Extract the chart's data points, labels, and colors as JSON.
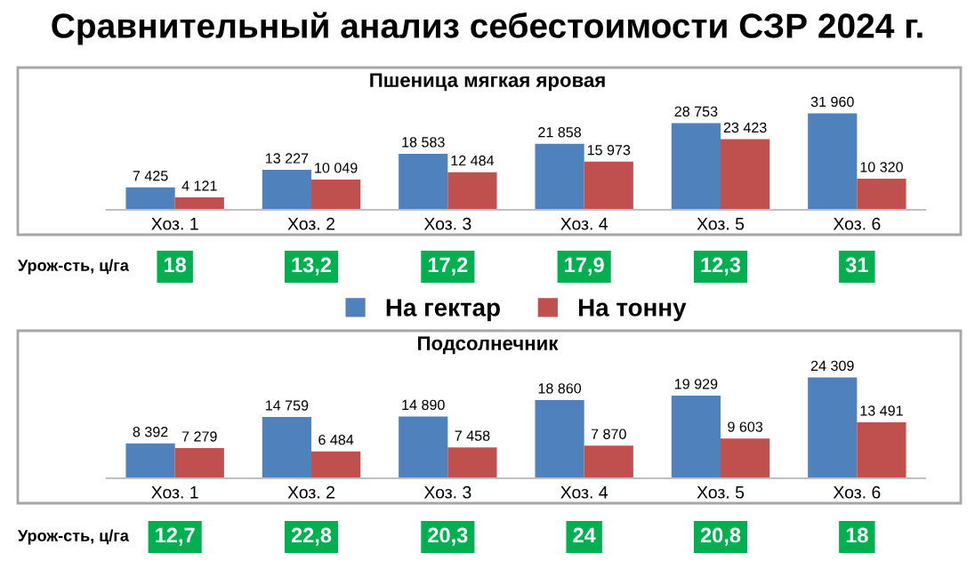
{
  "chart_data": [
    {
      "type": "bar",
      "title": "Сравнительный анализ себестоимости СЗР 2024 г.",
      "subtitle": "Пшеница мягкая яровая",
      "categories": [
        "Хоз. 1",
        "Хоз. 2",
        "Хоз. 3",
        "Хоз. 4",
        "Хоз. 5",
        "Хоз. 6"
      ],
      "series": [
        {
          "name": "На гектар",
          "color": "#4f81bd",
          "values": [
            7425,
            13227,
            18583,
            21858,
            28753,
            31960
          ],
          "value_labels": [
            "7 425",
            "13 227",
            "18 583",
            "21 858",
            "28 753",
            "31 960"
          ]
        },
        {
          "name": "На тонну",
          "color": "#c0504d",
          "values": [
            4121,
            10049,
            12484,
            15973,
            23423,
            10320
          ],
          "value_labels": [
            "4 121",
            "10 049",
            "12 484",
            "15 973",
            "23 423",
            "10 320"
          ]
        }
      ],
      "legend": "bottom",
      "grid": false,
      "annotations": [
        "Урож-сть, ц/га",
        "18",
        "13,2",
        "17,2",
        "17,9",
        "12,3",
        "31"
      ]
    },
    {
      "type": "bar",
      "title": "Подсолнечник",
      "categories": [
        "Хоз. 1",
        "Хоз. 2",
        "Хоз. 3",
        "Хоз. 4",
        "Хоз. 5",
        "Хоз. 6"
      ],
      "series": [
        {
          "color": "#4f81bd",
          "values": [
            8392,
            14759,
            14890,
            18860,
            19929,
            24309
          ],
          "value_labels": [
            "8 392",
            "14 759",
            "14 890",
            "18 860",
            "19 929",
            "24 309"
          ]
        },
        {
          "color": "#c0504d",
          "values": [
            7279,
            6484,
            7458,
            7870,
            9603,
            13491
          ],
          "value_labels": [
            "7 279",
            "6 484",
            "7 458",
            "7 870",
            "9 603",
            "13 491"
          ]
        }
      ],
      "legend": false,
      "grid": false,
      "annotations": [
        "Урож-сть, ц/га",
        "12,7",
        "22,8",
        "20,3",
        "24",
        "20,8",
        "18"
      ]
    }
  ]
}
